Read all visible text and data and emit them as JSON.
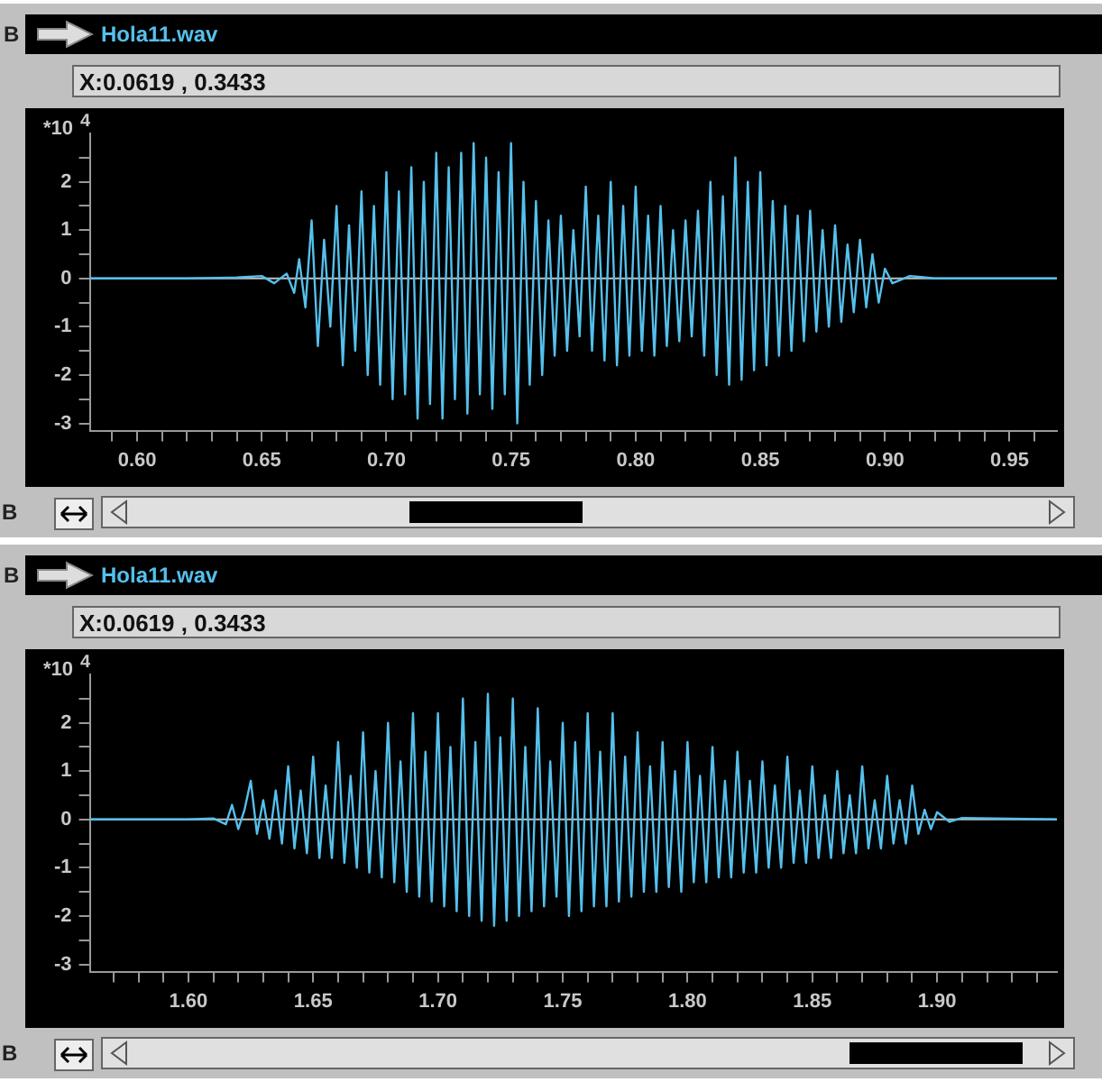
{
  "chart_data": [
    {
      "type": "line",
      "title": "Hola11.wav",
      "ylabel": "*10$^{4}$",
      "annotations": [
        "B",
        "X:0.0619 , 0.3433",
        "B"
      ],
      "grid": false,
      "xlim": [
        0.581,
        0.969
      ],
      "ylim": [
        -3.15,
        3.0
      ],
      "xticks": [
        {
          "value": 0.59,
          "label": null
        },
        {
          "value": 0.6,
          "label": "0.60"
        },
        {
          "value": 0.61,
          "label": null
        },
        {
          "value": 0.62,
          "label": null
        },
        {
          "value": 0.63,
          "label": null
        },
        {
          "value": 0.64,
          "label": null
        },
        0.65,
        {
          "value": 0.66,
          "label": null
        },
        {
          "value": 0.67,
          "label": null
        },
        {
          "value": 0.68,
          "label": null
        },
        {
          "value": 0.69,
          "label": null
        },
        {
          "value": 0.7,
          "label": "0.70"
        },
        {
          "value": 0.71,
          "label": null
        },
        {
          "value": 0.72,
          "label": null
        },
        {
          "value": 0.73,
          "label": null
        },
        {
          "value": 0.74,
          "label": null
        },
        0.75,
        {
          "value": 0.76,
          "label": null
        },
        {
          "value": 0.77,
          "label": null
        },
        {
          "value": 0.78,
          "label": null
        },
        {
          "value": 0.79,
          "label": null
        },
        {
          "value": 0.8,
          "label": "0.80"
        },
        {
          "value": 0.81,
          "label": null
        },
        {
          "value": 0.82,
          "label": null
        },
        {
          "value": 0.83,
          "label": null
        },
        {
          "value": 0.84,
          "label": null
        },
        0.85,
        {
          "value": 0.86,
          "label": null
        },
        {
          "value": 0.87,
          "label": null
        },
        {
          "value": 0.88,
          "label": null
        },
        {
          "value": 0.89,
          "label": null
        },
        {
          "value": 0.9,
          "label": "0.90"
        },
        {
          "value": 0.91,
          "label": null
        },
        {
          "value": 0.92,
          "label": null
        },
        {
          "value": 0.93,
          "label": null
        },
        {
          "value": 0.94,
          "label": null
        },
        0.95,
        {
          "value": 0.96,
          "label": null
        }
      ],
      "yticks": [
        -3,
        {
          "value": -2.5,
          "label": null
        },
        -2,
        {
          "value": -1.5,
          "label": null
        },
        -1,
        {
          "value": -0.5,
          "label": null
        },
        0,
        {
          "value": 0.5,
          "label": null
        },
        1,
        {
          "value": 1.5,
          "label": null
        },
        2,
        {
          "value": 2.5,
          "label": null
        }
      ],
      "ref_lines": [
        {
          "axis": "y",
          "value": 0,
          "color": "#c0c0c0"
        }
      ],
      "x": [
        0.581,
        0.62,
        0.64,
        0.65,
        0.655,
        0.66,
        0.663,
        0.665,
        0.6675,
        0.67,
        0.6725,
        0.675,
        0.6775,
        0.68,
        0.6825,
        0.685,
        0.6875,
        0.69,
        0.6925,
        0.695,
        0.6975,
        0.7,
        0.7025,
        0.705,
        0.7075,
        0.71,
        0.7125,
        0.715,
        0.7175,
        0.72,
        0.7225,
        0.725,
        0.7275,
        0.73,
        0.7325,
        0.735,
        0.7375,
        0.74,
        0.7425,
        0.745,
        0.7475,
        0.75,
        0.7525,
        0.755,
        0.7575,
        0.76,
        0.7625,
        0.765,
        0.7675,
        0.77,
        0.7725,
        0.775,
        0.7775,
        0.78,
        0.7825,
        0.785,
        0.7875,
        0.79,
        0.7925,
        0.795,
        0.7975,
        0.8,
        0.8025,
        0.805,
        0.8075,
        0.81,
        0.8125,
        0.815,
        0.8175,
        0.82,
        0.8225,
        0.825,
        0.8275,
        0.83,
        0.8325,
        0.835,
        0.8375,
        0.84,
        0.8425,
        0.845,
        0.8475,
        0.85,
        0.8525,
        0.855,
        0.8575,
        0.86,
        0.8625,
        0.865,
        0.8675,
        0.87,
        0.8725,
        0.875,
        0.8775,
        0.88,
        0.8825,
        0.885,
        0.8875,
        0.89,
        0.8925,
        0.895,
        0.8975,
        0.9,
        0.903,
        0.91,
        0.92,
        0.969
      ],
      "series": [
        {
          "color": "#55c0ec",
          "values": [
            0,
            0,
            0.02,
            0.05,
            -0.1,
            0.1,
            -0.3,
            0.4,
            -0.6,
            1.2,
            -1.4,
            0.8,
            -1.0,
            1.5,
            -1.8,
            1.1,
            -1.5,
            1.8,
            -2.0,
            1.5,
            -2.2,
            2.2,
            -2.5,
            1.8,
            -2.4,
            2.3,
            -2.9,
            2.0,
            -2.6,
            2.6,
            -2.9,
            2.3,
            -2.5,
            2.6,
            -2.8,
            2.8,
            -2.4,
            2.5,
            -2.7,
            2.2,
            -2.4,
            2.8,
            -3.0,
            2.0,
            -2.2,
            1.6,
            -2.0,
            1.2,
            -1.6,
            1.3,
            -1.5,
            1.0,
            -1.2,
            1.9,
            -1.5,
            1.3,
            -1.7,
            2.0,
            -1.8,
            1.5,
            -1.6,
            1.9,
            -1.5,
            1.3,
            -1.6,
            1.5,
            -1.4,
            1.0,
            -1.3,
            1.2,
            -1.2,
            1.4,
            -1.6,
            2.0,
            -2.0,
            1.7,
            -2.2,
            2.5,
            -2.1,
            2.0,
            -1.9,
            2.2,
            -1.8,
            1.6,
            -1.6,
            1.5,
            -1.5,
            1.3,
            -1.3,
            1.4,
            -1.1,
            1.0,
            -1.0,
            1.1,
            -0.9,
            0.7,
            -0.7,
            0.8,
            -0.6,
            0.5,
            -0.5,
            0.2,
            -0.1,
            0.05,
            0,
            0
          ]
        }
      ]
    },
    {
      "type": "line",
      "title": "Hola11.wav",
      "ylabel": "*10$^{4}$",
      "annotations": [
        "B",
        "X:0.0619 , 0.3433",
        "B"
      ],
      "grid": false,
      "xlim": [
        1.5605,
        1.948
      ],
      "ylim": [
        -3.15,
        3.0
      ],
      "xticks": [
        {
          "value": 1.57,
          "label": null
        },
        {
          "value": 1.58,
          "label": null
        },
        {
          "value": 1.59,
          "label": null
        },
        {
          "value": 1.6,
          "label": "1.60"
        },
        {
          "value": 1.61,
          "label": null
        },
        {
          "value": 1.62,
          "label": null
        },
        {
          "value": 1.63,
          "label": null
        },
        {
          "value": 1.64,
          "label": null
        },
        1.65,
        {
          "value": 1.66,
          "label": null
        },
        {
          "value": 1.67,
          "label": null
        },
        {
          "value": 1.68,
          "label": null
        },
        {
          "value": 1.69,
          "label": null
        },
        {
          "value": 1.7,
          "label": "1.70"
        },
        {
          "value": 1.71,
          "label": null
        },
        {
          "value": 1.72,
          "label": null
        },
        {
          "value": 1.73,
          "label": null
        },
        {
          "value": 1.74,
          "label": null
        },
        1.75,
        {
          "value": 1.76,
          "label": null
        },
        {
          "value": 1.77,
          "label": null
        },
        {
          "value": 1.78,
          "label": null
        },
        {
          "value": 1.79,
          "label": null
        },
        {
          "value": 1.8,
          "label": "1.80"
        },
        {
          "value": 1.81,
          "label": null
        },
        {
          "value": 1.82,
          "label": null
        },
        {
          "value": 1.83,
          "label": null
        },
        {
          "value": 1.84,
          "label": null
        },
        1.85,
        {
          "value": 1.86,
          "label": null
        },
        {
          "value": 1.87,
          "label": null
        },
        {
          "value": 1.88,
          "label": null
        },
        {
          "value": 1.89,
          "label": null
        },
        {
          "value": 1.9,
          "label": "1.90"
        },
        {
          "value": 1.91,
          "label": null
        },
        {
          "value": 1.92,
          "label": null
        },
        {
          "value": 1.93,
          "label": null
        },
        {
          "value": 1.94,
          "label": null
        }
      ],
      "yticks": [
        -3,
        {
          "value": -2.5,
          "label": null
        },
        -2,
        {
          "value": -1.5,
          "label": null
        },
        -1,
        {
          "value": -0.5,
          "label": null
        },
        0,
        {
          "value": 0.5,
          "label": null
        },
        1,
        {
          "value": 1.5,
          "label": null
        },
        2,
        {
          "value": 2.5,
          "label": null
        }
      ],
      "ref_lines": [
        {
          "axis": "y",
          "value": 0,
          "color": "#c0c0c0"
        }
      ],
      "x": [
        1.5605,
        1.6,
        1.61,
        1.615,
        1.6175,
        1.62,
        1.6225,
        1.625,
        1.6275,
        1.63,
        1.6325,
        1.635,
        1.6375,
        1.64,
        1.6425,
        1.645,
        1.6475,
        1.65,
        1.6525,
        1.655,
        1.6575,
        1.66,
        1.6625,
        1.665,
        1.6675,
        1.67,
        1.6725,
        1.675,
        1.6775,
        1.68,
        1.6825,
        1.685,
        1.6875,
        1.69,
        1.6925,
        1.695,
        1.6975,
        1.7,
        1.7025,
        1.705,
        1.7075,
        1.71,
        1.7125,
        1.715,
        1.7175,
        1.72,
        1.7225,
        1.725,
        1.7275,
        1.73,
        1.7325,
        1.735,
        1.7375,
        1.74,
        1.7425,
        1.745,
        1.7475,
        1.75,
        1.7525,
        1.755,
        1.7575,
        1.76,
        1.7625,
        1.765,
        1.7675,
        1.77,
        1.7725,
        1.775,
        1.7775,
        1.78,
        1.7825,
        1.785,
        1.7875,
        1.79,
        1.7925,
        1.795,
        1.7975,
        1.8,
        1.8025,
        1.805,
        1.8075,
        1.81,
        1.8125,
        1.815,
        1.8175,
        1.82,
        1.8225,
        1.825,
        1.8275,
        1.83,
        1.8325,
        1.835,
        1.8375,
        1.84,
        1.8425,
        1.845,
        1.8475,
        1.85,
        1.8525,
        1.855,
        1.8575,
        1.86,
        1.8625,
        1.865,
        1.8675,
        1.87,
        1.8725,
        1.875,
        1.8775,
        1.88,
        1.8825,
        1.885,
        1.8875,
        1.89,
        1.8925,
        1.895,
        1.8975,
        1.9,
        1.905,
        1.91,
        1.948
      ],
      "series": [
        {
          "color": "#55c0ec",
          "values": [
            0,
            0,
            0.02,
            -0.1,
            0.3,
            -0.2,
            0.2,
            0.8,
            -0.3,
            0.4,
            -0.4,
            0.6,
            -0.5,
            1.1,
            -0.6,
            0.6,
            -0.7,
            1.3,
            -0.8,
            0.7,
            -0.8,
            1.6,
            -0.9,
            0.9,
            -1.0,
            1.8,
            -1.1,
            1.0,
            -1.2,
            2.0,
            -1.3,
            1.2,
            -1.5,
            2.2,
            -1.6,
            1.4,
            -1.7,
            2.2,
            -1.8,
            1.5,
            -1.9,
            2.5,
            -2.0,
            1.6,
            -2.1,
            2.6,
            -2.2,
            1.7,
            -2.1,
            2.5,
            -2.0,
            1.5,
            -1.9,
            2.3,
            -1.8,
            1.2,
            -1.6,
            2.0,
            -2.0,
            1.6,
            -1.9,
            2.2,
            -1.8,
            1.4,
            -1.8,
            2.2,
            -1.7,
            1.3,
            -1.6,
            1.8,
            -1.5,
            1.1,
            -1.5,
            1.6,
            -1.4,
            1.0,
            -1.5,
            1.6,
            -1.3,
            0.9,
            -1.3,
            1.5,
            -1.2,
            0.8,
            -1.2,
            1.4,
            -1.1,
            0.8,
            -1.1,
            1.2,
            -1.0,
            0.7,
            -1.0,
            1.3,
            -0.9,
            0.6,
            -0.9,
            1.1,
            -0.8,
            0.5,
            -0.8,
            1.0,
            -0.7,
            0.5,
            -0.7,
            1.1,
            -0.6,
            0.4,
            -0.6,
            0.9,
            -0.5,
            0.4,
            -0.5,
            0.7,
            -0.3,
            0.2,
            -0.2,
            0.15,
            -0.05,
            0.03,
            0
          ]
        }
      ]
    }
  ]
}
